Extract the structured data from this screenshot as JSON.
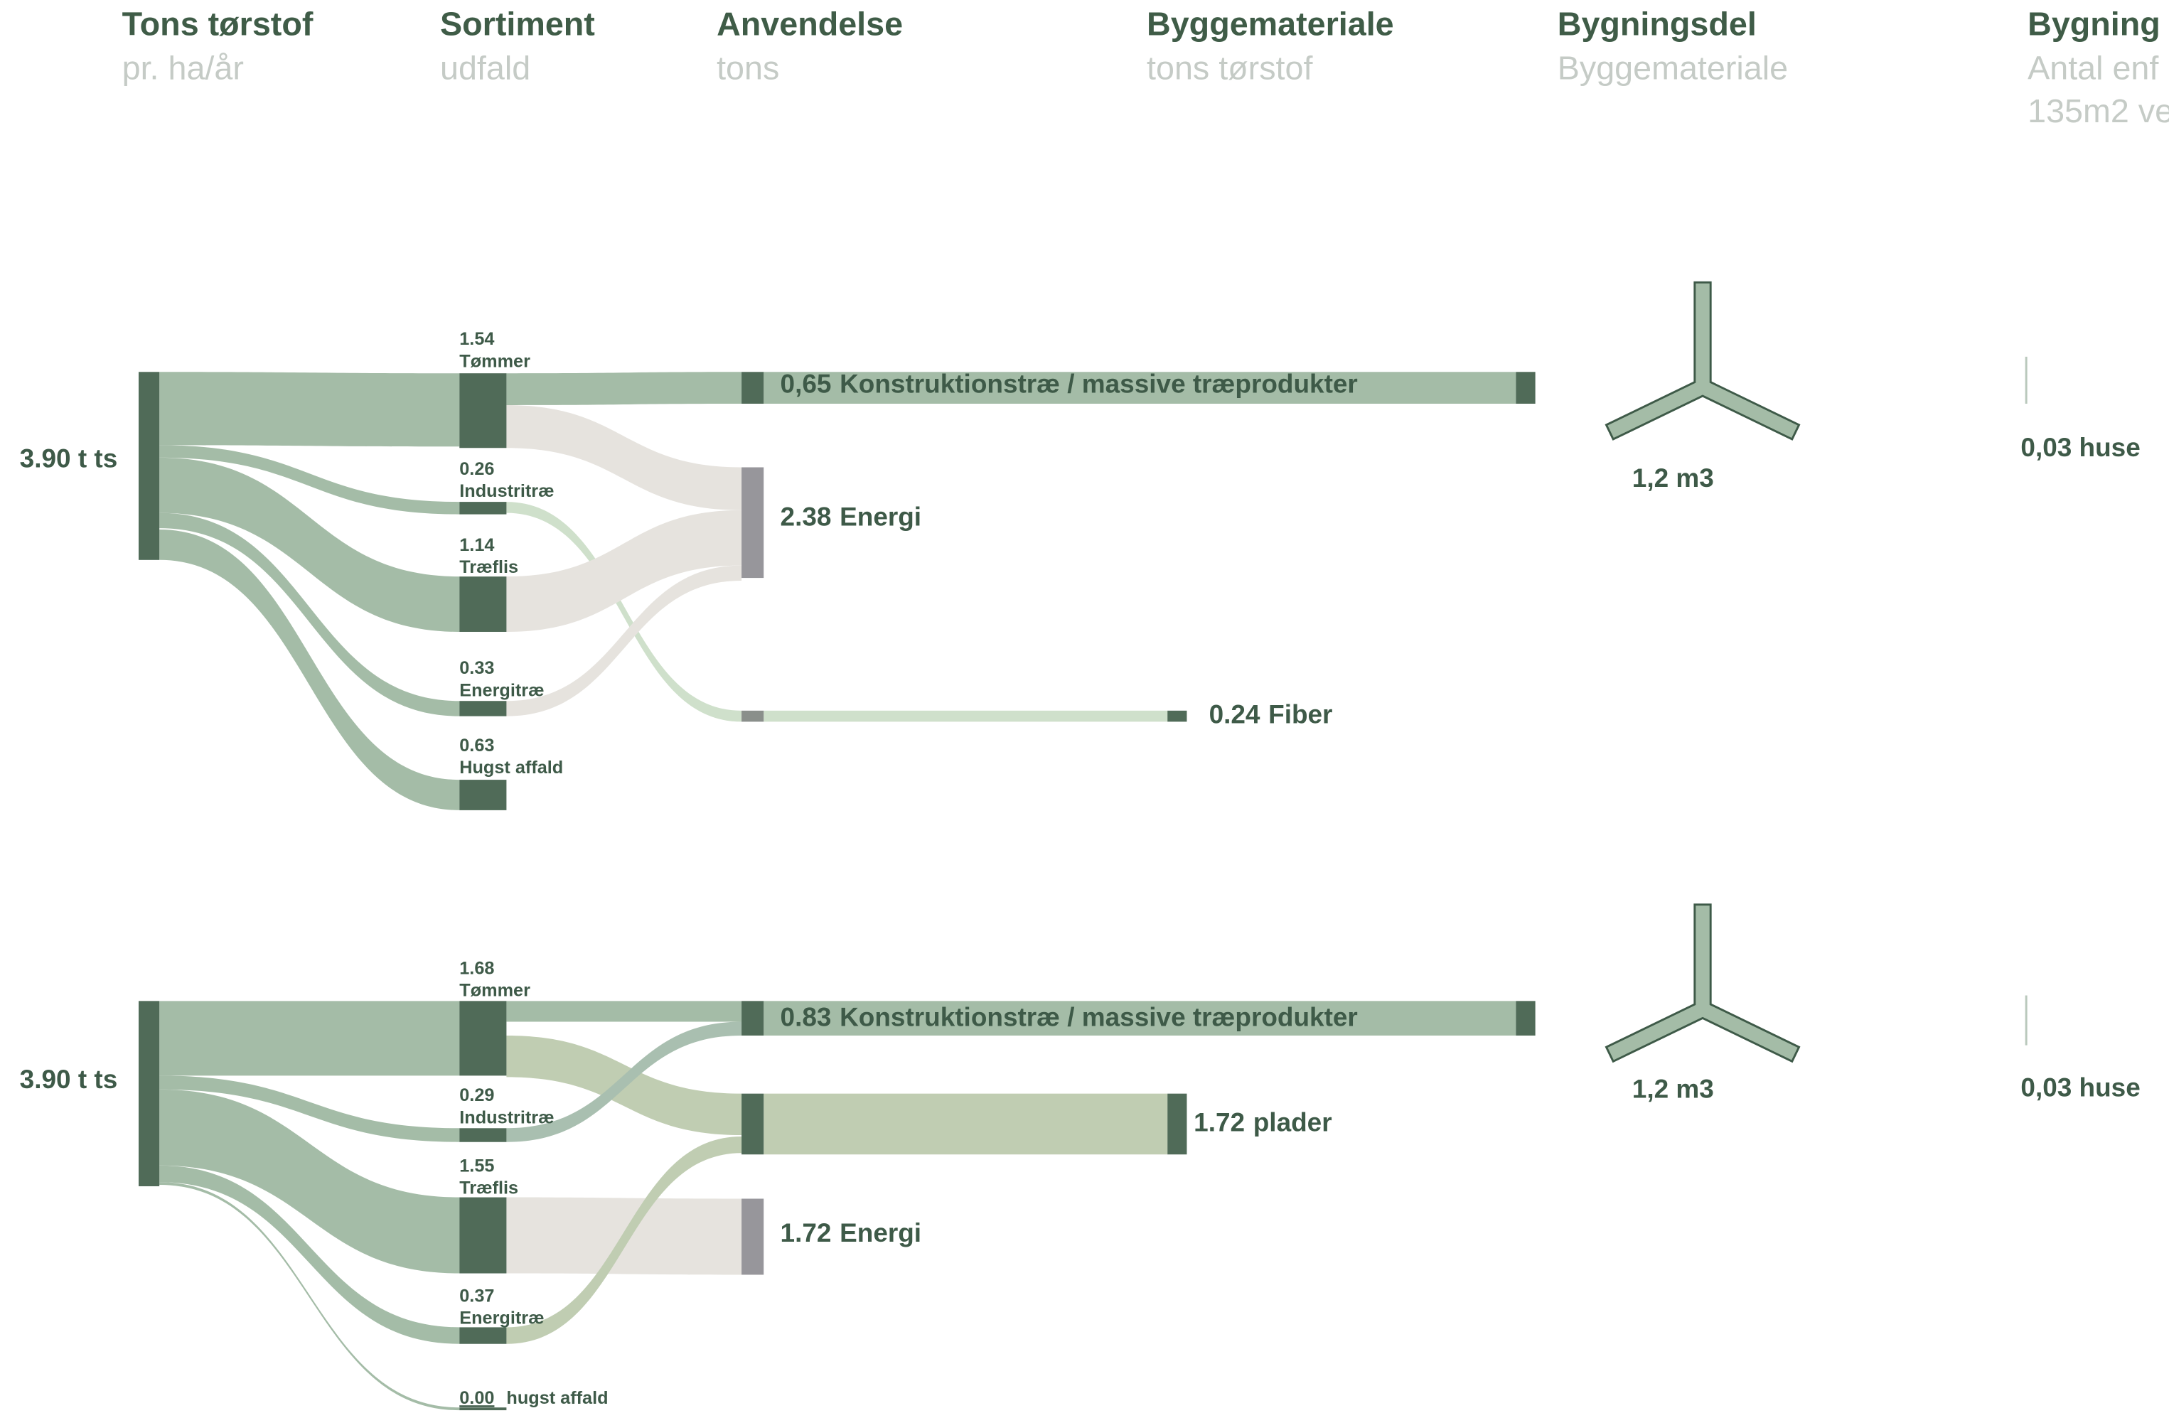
{
  "columns": [
    {
      "title": "Tons tørstof",
      "subtitle": "pr. ha/år"
    },
    {
      "title": "Sortiment",
      "subtitle": "udfald"
    },
    {
      "title": "Anvendelse",
      "subtitle": "tons"
    },
    {
      "title": "Byggemateriale",
      "subtitle": "tons tørstof"
    },
    {
      "title": "Bygningsdel",
      "subtitle": "Byggemateriale"
    },
    {
      "title": "Bygning",
      "subtitle": "Antal enf",
      "subtitle2": "135m2 ve"
    }
  ],
  "diagrams": [
    {
      "source": "3.90 t ts",
      "sortiment": [
        {
          "value": "1.54",
          "name": "Tømmer"
        },
        {
          "value": "0.26",
          "name": "Industritræ"
        },
        {
          "value": "1.14",
          "name": "Træflis"
        },
        {
          "value": "0.33",
          "name": "Energitræ"
        },
        {
          "value": "0.63",
          "name": "Hugst affald"
        }
      ],
      "uses": [
        {
          "value": "0,65",
          "name": "Konstruktionstræ / massive træprodukter"
        },
        {
          "value": "2.38",
          "name": "Energi"
        },
        {
          "value": "0.24",
          "name": "Fiber"
        }
      ],
      "building_part": "1,2 m3",
      "houses": "0,03 huse"
    },
    {
      "source": "3.90 t ts",
      "sortiment": [
        {
          "value": "1.68",
          "name": "Tømmer"
        },
        {
          "value": "0.29",
          "name": "Industritræ"
        },
        {
          "value": "1.55",
          "name": "Træflis"
        },
        {
          "value": "0.37",
          "name": "Energitræ"
        },
        {
          "value": "0.00",
          "name": "hugst affald"
        }
      ],
      "uses": [
        {
          "value": "0.83",
          "name": "Konstruktionstræ / massive træprodukter"
        },
        {
          "value": "1.72",
          "name": "plader"
        },
        {
          "value": "1.72",
          "name": "Energi"
        }
      ],
      "building_part": "1,2 m3",
      "houses": "0,03 huse"
    }
  ]
}
